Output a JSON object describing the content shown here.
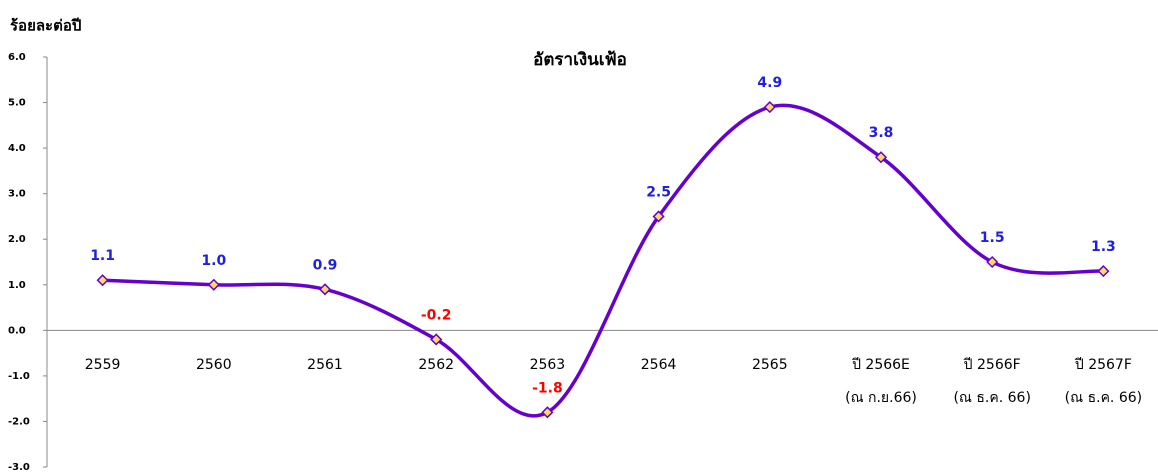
{
  "chart_data": {
    "type": "line",
    "title": "อัตราเงินเฟ้อ",
    "y_label": "ร้อยละต่อปี",
    "categories": [
      "2559",
      "2560",
      "2561",
      "2562",
      "2563",
      "2564",
      "2565",
      "ปี 2566E\n(ณ ก.ย.66)",
      "ปี 2566F\n(ณ ธ.ค. 66)",
      "ปี 2567F\n(ณ ธ.ค. 66)"
    ],
    "series": [
      {
        "name": "อัตราเงินเฟ้อ",
        "color": "#6600cc",
        "marker_color": "#ffd966",
        "values": [
          1.1,
          1.0,
          0.9,
          -0.2,
          -1.8,
          2.5,
          4.9,
          3.8,
          1.5,
          1.3
        ],
        "value_labels": [
          "1.1",
          "1.0",
          "0.9",
          "-0.2",
          "-1.8",
          "2.5",
          "4.9",
          "3.8",
          "1.5",
          "1.3"
        ]
      }
    ],
    "label_color": "#1f1fe0",
    "negative_label_color": "#ff0000",
    "ylim": [
      -3,
      6
    ],
    "yticks": [
      {
        "value": -3,
        "label": "-3.0"
      },
      {
        "value": -2,
        "label": "-2.0"
      },
      {
        "value": -1,
        "label": "-1.0"
      },
      {
        "value": 0,
        "label": "0.0"
      },
      {
        "value": 1,
        "label": "1.0"
      },
      {
        "value": 2,
        "label": "2.0"
      },
      {
        "value": 3,
        "label": "3.0"
      },
      {
        "value": 4,
        "label": "4.0"
      },
      {
        "value": 5,
        "label": "5.0"
      },
      {
        "value": 6,
        "label": "6.0"
      }
    ],
    "smooth": true
  }
}
